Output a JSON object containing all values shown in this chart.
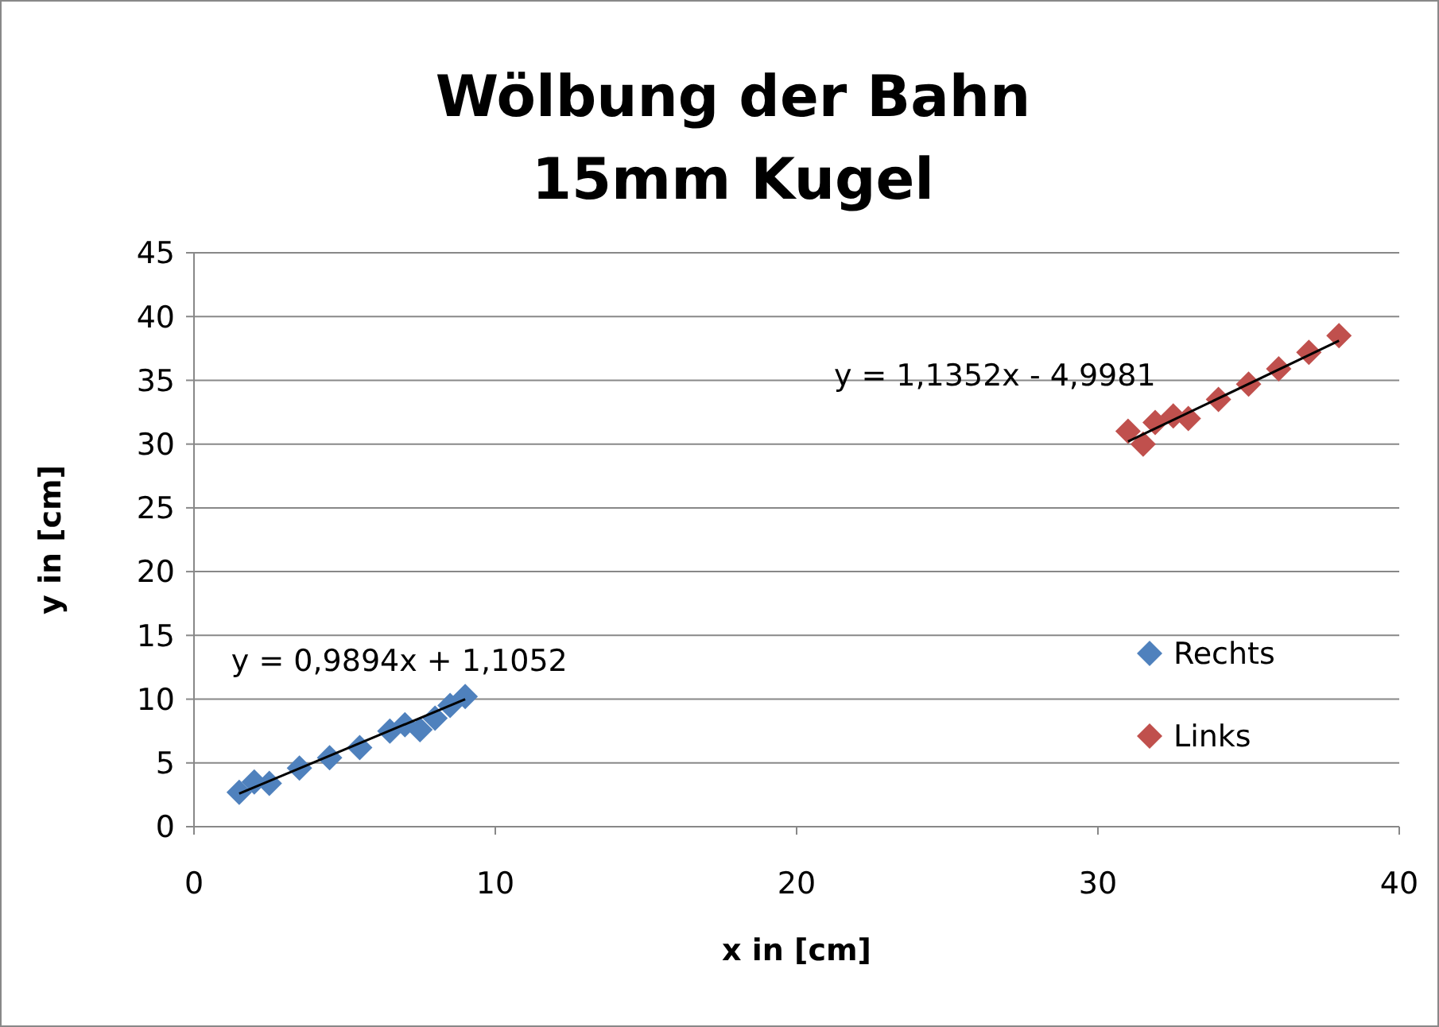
{
  "chart_data": {
    "type": "scatter",
    "title": "Wölbung der Bahn\n15mm Kugel",
    "xlabel": "x in [cm]",
    "ylabel": "y in [cm]",
    "xlim": [
      0,
      40
    ],
    "xticks": [
      0,
      10,
      20,
      30,
      40
    ],
    "ylim": [
      0,
      45
    ],
    "yticks": [
      0,
      5,
      10,
      15,
      20,
      25,
      30,
      35,
      40,
      45
    ],
    "grid": "y",
    "legend": "right",
    "marker": "diamond",
    "series": [
      {
        "name": "Rechts",
        "color": "#4f81bd",
        "x": [
          1.5,
          2,
          2.5,
          3.5,
          4.5,
          5.5,
          6.5,
          7,
          7.5,
          8,
          8.5,
          9
        ],
        "values": [
          2.7,
          3.5,
          3.4,
          4.6,
          5.4,
          6.2,
          7.5,
          8,
          7.6,
          8.5,
          9.5,
          10.2
        ]
      },
      {
        "name": "Links",
        "color": "#c0504d",
        "x": [
          31,
          31.5,
          31.9,
          32.5,
          33,
          34,
          35,
          36,
          37,
          38
        ],
        "values": [
          31,
          30,
          31.7,
          32.2,
          32,
          33.5,
          34.7,
          35.9,
          37.2,
          38.5
        ]
      },
      {
        "type": "line",
        "color": "#000000",
        "marker": "none",
        "x": [
          1.5,
          9
        ],
        "values": [
          2.6,
          10.0
        ]
      },
      {
        "type": "line",
        "color": "#000000",
        "marker": "none",
        "x": [
          31,
          38
        ],
        "values": [
          30.2,
          38.1
        ]
      }
    ],
    "annotations": [
      "y = 0,9894x + 1,1052",
      "y = 1,1352x - 4,9981"
    ]
  }
}
